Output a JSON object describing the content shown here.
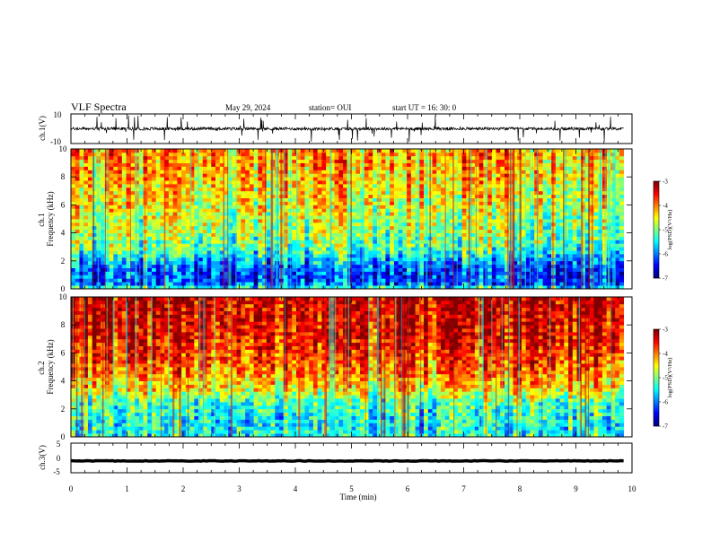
{
  "header": {
    "title": "VLF Spectra",
    "date": "May 29, 2024",
    "station": "station= OUI",
    "start": "start UT =   16: 30: 0"
  },
  "chart_data": [
    {
      "type": "line",
      "ylabel": "ch.1(V)",
      "ylim": [
        -10,
        10
      ],
      "yticks": [
        "10",
        "-10"
      ],
      "xlim": [
        0,
        10
      ],
      "series": [
        {
          "baseline": 0,
          "noise_amplitude": 2
        }
      ]
    },
    {
      "type": "heatmap",
      "ylabel": "ch.1\nFrequency (kHz)",
      "ylabel_lines": [
        "ch.1",
        "Frequency (kHz)"
      ],
      "ylim": [
        0,
        10
      ],
      "yticks": [
        "0",
        "2",
        "4",
        "6",
        "8",
        "10"
      ],
      "xlim": [
        0,
        10
      ],
      "data_end_min": 9.85,
      "colorbar": {
        "label": "log(PSD)(V²/Hz)",
        "range": [
          -7,
          -3
        ],
        "ticks": [
          "-3",
          "-4",
          "-5",
          "-6",
          "-7"
        ]
      },
      "profile": [
        {
          "f": 0,
          "v": -5.2
        },
        {
          "f": 0.4,
          "v": -6.2
        },
        {
          "f": 1.0,
          "v": -6.3
        },
        {
          "f": 1.6,
          "v": -6.1
        },
        {
          "f": 2.3,
          "v": -5.6
        },
        {
          "f": 3.0,
          "v": -5.1
        },
        {
          "f": 4.0,
          "v": -4.9
        },
        {
          "f": 6.0,
          "v": -4.6
        },
        {
          "f": 8.0,
          "v": -4.3
        },
        {
          "f": 10.0,
          "v": -4.1
        }
      ]
    },
    {
      "type": "heatmap",
      "ylabel": "ch.2\nFrequency (kHz)",
      "ylabel_lines": [
        "ch.2",
        "Frequency (kHz)"
      ],
      "ylim": [
        0,
        10
      ],
      "yticks": [
        "0",
        "2",
        "4",
        "6",
        "8",
        "10"
      ],
      "xlim": [
        0,
        10
      ],
      "data_end_min": 9.85,
      "colorbar": {
        "label": "log(PSD)(V²/Hz)",
        "range": [
          -7,
          -3
        ],
        "ticks": [
          "-3",
          "-4",
          "-5",
          "-6",
          "-7"
        ]
      },
      "profile": [
        {
          "f": 0,
          "v": -5.4
        },
        {
          "f": 1.0,
          "v": -5.5
        },
        {
          "f": 2.5,
          "v": -5.2
        },
        {
          "f": 3.5,
          "v": -4.4
        },
        {
          "f": 5.0,
          "v": -3.9
        },
        {
          "f": 7.0,
          "v": -3.5
        },
        {
          "f": 10.0,
          "v": -3.3
        }
      ]
    },
    {
      "type": "line",
      "ylabel": "ch.3(V)",
      "ylim": [
        -5,
        5
      ],
      "yticks": [
        "5",
        "0",
        "-5"
      ],
      "xlim": [
        0,
        10
      ],
      "xlabel": "Time (min)",
      "xticks": [
        "0",
        "1",
        "2",
        "3",
        "4",
        "5",
        "6",
        "7",
        "8",
        "9",
        "10"
      ],
      "series": [
        {
          "baseline": -1,
          "noise_amplitude": 0.2
        }
      ]
    }
  ]
}
